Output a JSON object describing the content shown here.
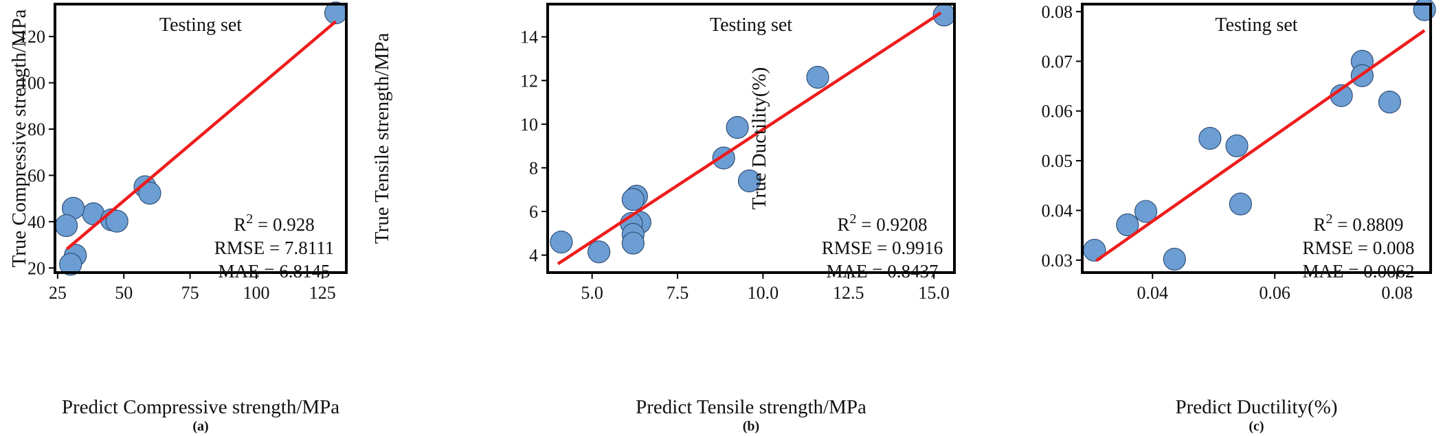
{
  "chart_data": [
    {
      "type": "scatter",
      "panel_label": "(a)",
      "title": "Testing set",
      "xlabel": "Predict Compressive strength/MPa",
      "ylabel": "True Compressive strength/MPa",
      "xlim": [
        24,
        134
      ],
      "ylim": [
        18,
        134
      ],
      "xticks": [
        25,
        50,
        75,
        100,
        125
      ],
      "yticks": [
        20,
        40,
        60,
        80,
        100,
        120
      ],
      "xtick_labels": [
        "25",
        "50",
        "75",
        "100",
        "125"
      ],
      "ytick_labels": [
        "20",
        "40",
        "60",
        "80",
        "100",
        "120"
      ],
      "points": [
        {
          "x": 130.0,
          "y": 130.2
        },
        {
          "x": 58.0,
          "y": 55.1
        },
        {
          "x": 59.8,
          "y": 52.3
        },
        {
          "x": 38.5,
          "y": 43.4
        },
        {
          "x": 45.4,
          "y": 40.8
        },
        {
          "x": 47.4,
          "y": 40.2
        },
        {
          "x": 30.9,
          "y": 45.8
        },
        {
          "x": 28.3,
          "y": 38.3
        },
        {
          "x": 31.7,
          "y": 25.5
        },
        {
          "x": 29.9,
          "y": 21.6
        }
      ],
      "fit_line": [
        {
          "x": 28.5,
          "y": 28.2
        },
        {
          "x": 130.0,
          "y": 126.5
        }
      ],
      "metrics": [
        {
          "label": "R",
          "superscript": "2",
          "text": " = 0.928"
        },
        {
          "label": "RMSE",
          "text": " = 7.8111"
        },
        {
          "label": "MAE",
          "text": " = 6.8145"
        }
      ],
      "marker_color": "#6c9ed3",
      "line_color": "#ee1c1c",
      "grid": false
    },
    {
      "type": "scatter",
      "panel_label": "(b)",
      "title": "Testing set",
      "xlabel": "Predict Tensile strength/MPa",
      "ylabel": "True Tensile strength/MPa",
      "xlim": [
        3.7,
        15.6
      ],
      "ylim": [
        3.2,
        15.5
      ],
      "xticks": [
        5.0,
        7.5,
        10.0,
        12.5,
        15.0
      ],
      "yticks": [
        4,
        6,
        8,
        10,
        12,
        14
      ],
      "xtick_labels": [
        "5.0",
        "7.5",
        "10.0",
        "12.5",
        "15.0"
      ],
      "ytick_labels": [
        "4",
        "6",
        "8",
        "10",
        "12",
        "14"
      ],
      "points": [
        {
          "x": 15.3,
          "y": 15.0
        },
        {
          "x": 11.6,
          "y": 12.15
        },
        {
          "x": 9.25,
          "y": 9.85
        },
        {
          "x": 8.85,
          "y": 8.45
        },
        {
          "x": 9.6,
          "y": 7.4
        },
        {
          "x": 6.3,
          "y": 6.7
        },
        {
          "x": 6.2,
          "y": 6.55
        },
        {
          "x": 6.4,
          "y": 5.5
        },
        {
          "x": 6.15,
          "y": 5.45
        },
        {
          "x": 6.2,
          "y": 4.95
        },
        {
          "x": 6.2,
          "y": 4.55
        },
        {
          "x": 4.1,
          "y": 4.6
        },
        {
          "x": 5.2,
          "y": 4.15
        }
      ],
      "fit_line": [
        {
          "x": 4.0,
          "y": 3.6
        },
        {
          "x": 15.2,
          "y": 15.1
        }
      ],
      "metrics": [
        {
          "label": "R",
          "superscript": "2",
          "text": " = 0.9208"
        },
        {
          "label": "RMSE",
          "text": " = 0.9916"
        },
        {
          "label": "MAE",
          "text": " = 0.8437"
        }
      ],
      "marker_color": "#6c9ed3",
      "line_color": "#ee1c1c",
      "grid": false
    },
    {
      "type": "scatter",
      "panel_label": "(c)",
      "title": "Testing set",
      "xlabel": "Predict Ductility(%)",
      "ylabel": "True Ductility(%)",
      "xlim": [
        0.0285,
        0.0855
      ],
      "ylim": [
        0.0275,
        0.0815
      ],
      "xticks": [
        0.04,
        0.06,
        0.08
      ],
      "yticks": [
        0.03,
        0.04,
        0.05,
        0.06,
        0.07,
        0.08
      ],
      "xtick_labels": [
        "0.04",
        "0.06",
        "0.08"
      ],
      "ytick_labels": [
        "0.03",
        "0.04",
        "0.05",
        "0.06",
        "0.07",
        "0.08"
      ],
      "points": [
        {
          "x": 0.0845,
          "y": 0.0804
        },
        {
          "x": 0.0743,
          "y": 0.07
        },
        {
          "x": 0.0743,
          "y": 0.0671
        },
        {
          "x": 0.0709,
          "y": 0.0631
        },
        {
          "x": 0.0788,
          "y": 0.0618
        },
        {
          "x": 0.0494,
          "y": 0.0545
        },
        {
          "x": 0.0538,
          "y": 0.053
        },
        {
          "x": 0.0544,
          "y": 0.0413
        },
        {
          "x": 0.0389,
          "y": 0.0398
        },
        {
          "x": 0.0359,
          "y": 0.0371
        },
        {
          "x": 0.0305,
          "y": 0.032
        },
        {
          "x": 0.0436,
          "y": 0.0302
        }
      ],
      "fit_line": [
        {
          "x": 0.0308,
          "y": 0.0299
        },
        {
          "x": 0.0845,
          "y": 0.0762
        }
      ],
      "metrics": [
        {
          "label": "R",
          "superscript": "2",
          "text": " = 0.8809"
        },
        {
          "label": "RMSE",
          "text": " = 0.008"
        },
        {
          "label": "MAE",
          "text": " = 0.0062"
        }
      ],
      "marker_color": "#6c9ed3",
      "line_color": "#ee1c1c",
      "grid": false
    }
  ]
}
